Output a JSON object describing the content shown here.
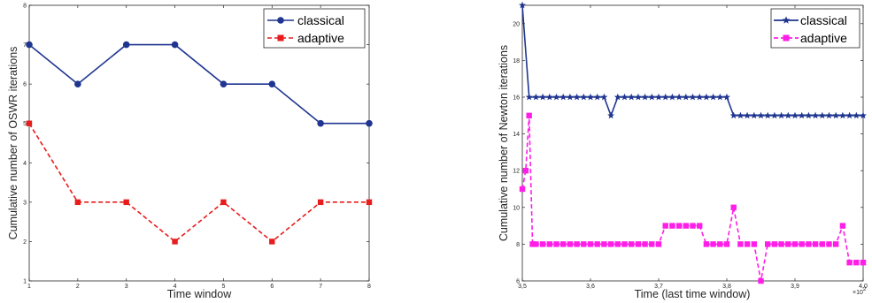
{
  "chart_data": [
    {
      "type": "line",
      "xlabel": "Time window",
      "ylabel": "Cumulative number of OSWR iterations",
      "xlim": [
        1,
        8
      ],
      "ylim": [
        1,
        8
      ],
      "xticks": [
        1,
        2,
        3,
        4,
        5,
        6,
        7,
        8
      ],
      "yticks": [
        1,
        2,
        3,
        4,
        5,
        6,
        7,
        8
      ],
      "x": [
        1,
        2,
        3,
        4,
        5,
        6,
        7,
        8
      ],
      "grid": false,
      "legend": "top-right",
      "series": [
        {
          "name": "classical",
          "color": "#1f3590",
          "marker": "circle",
          "line": "solid",
          "values": [
            7,
            6,
            7,
            7,
            6,
            6,
            5,
            5
          ]
        },
        {
          "name": "adaptive",
          "color": "#e81c1c",
          "marker": "square",
          "line": "dashed",
          "values": [
            5,
            3,
            3,
            2,
            3,
            2,
            3,
            3
          ]
        }
      ]
    },
    {
      "type": "line",
      "xlabel": "Time (last time window)",
      "ylabel": "Cumulative number of Newton iterations",
      "xlim": [
        3.5,
        4.0
      ],
      "ylim": [
        6,
        21
      ],
      "xticks": [
        3.5,
        3.6,
        3.7,
        3.8,
        3.9,
        4.0
      ],
      "xticklabels": [
        "3,5",
        "3,6",
        "3,7",
        "3,8",
        "3,9",
        "4,0"
      ],
      "yticks": [
        6,
        8,
        10,
        12,
        14,
        16,
        18,
        20
      ],
      "x_exponent_label": "×10",
      "x_exponent_power": "2",
      "grid": false,
      "legend": "top-right",
      "series": [
        {
          "name": "classical",
          "color": "#1f3590",
          "marker": "star",
          "line": "solid",
          "x": [
            3.5,
            3.51,
            3.52,
            3.53,
            3.54,
            3.55,
            3.56,
            3.57,
            3.58,
            3.59,
            3.6,
            3.61,
            3.62,
            3.63,
            3.64,
            3.65,
            3.66,
            3.67,
            3.68,
            3.69,
            3.7,
            3.71,
            3.72,
            3.73,
            3.74,
            3.75,
            3.76,
            3.77,
            3.78,
            3.79,
            3.8,
            3.81,
            3.82,
            3.83,
            3.84,
            3.85,
            3.86,
            3.87,
            3.88,
            3.89,
            3.9,
            3.91,
            3.92,
            3.93,
            3.94,
            3.95,
            3.96,
            3.97,
            3.98,
            3.99,
            4.0
          ],
          "values": [
            21,
            16,
            16,
            16,
            16,
            16,
            16,
            16,
            16,
            16,
            16,
            16,
            16,
            15,
            16,
            16,
            16,
            16,
            16,
            16,
            16,
            16,
            16,
            16,
            16,
            16,
            16,
            16,
            16,
            16,
            16,
            15,
            15,
            15,
            15,
            15,
            15,
            15,
            15,
            15,
            15,
            15,
            15,
            15,
            15,
            15,
            15,
            15,
            15,
            15,
            15
          ]
        },
        {
          "name": "adaptive",
          "color": "#ff1ee8",
          "marker": "square",
          "line": "dashed",
          "x": [
            3.5,
            3.505,
            3.51,
            3.515,
            3.52,
            3.53,
            3.54,
            3.55,
            3.56,
            3.57,
            3.58,
            3.59,
            3.6,
            3.61,
            3.62,
            3.63,
            3.64,
            3.65,
            3.66,
            3.67,
            3.68,
            3.69,
            3.7,
            3.71,
            3.72,
            3.73,
            3.74,
            3.75,
            3.76,
            3.77,
            3.78,
            3.79,
            3.8,
            3.81,
            3.82,
            3.83,
            3.84,
            3.85,
            3.86,
            3.87,
            3.88,
            3.89,
            3.9,
            3.91,
            3.92,
            3.93,
            3.94,
            3.95,
            3.96,
            3.97,
            3.98,
            3.99,
            4.0
          ],
          "values": [
            11,
            12,
            15,
            8,
            8,
            8,
            8,
            8,
            8,
            8,
            8,
            8,
            8,
            8,
            8,
            8,
            8,
            8,
            8,
            8,
            8,
            8,
            8,
            9,
            9,
            9,
            9,
            9,
            9,
            8,
            8,
            8,
            8,
            10,
            8,
            8,
            8,
            6,
            8,
            8,
            8,
            8,
            8,
            8,
            8,
            8,
            8,
            8,
            8,
            9,
            7,
            7,
            7
          ]
        }
      ]
    }
  ]
}
